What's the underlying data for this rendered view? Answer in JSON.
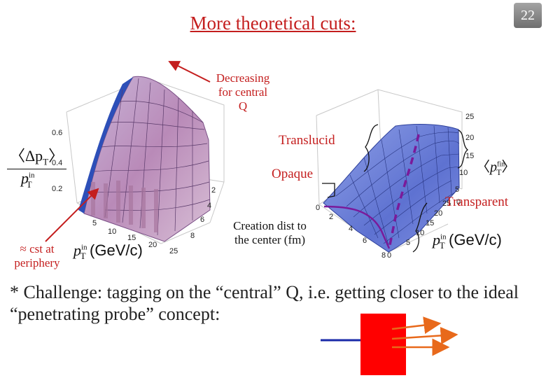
{
  "header": {
    "title": "More theoretical cuts:",
    "page_number": "22"
  },
  "left_plot": {
    "z_ticks": [
      "0.6",
      "0.4",
      "0.2"
    ],
    "x_ticks": [
      "5",
      "10",
      "15",
      "20",
      "25"
    ],
    "y_ticks": [
      "2",
      "4",
      "6",
      "8"
    ],
    "z_axis_label_top": "〈Δp",
    "z_axis_label_sub": "T",
    "z_axis_label_bottom": "p",
    "z_axis_label_bottom_sup": "in",
    "z_axis_label_bottom_sub": "T",
    "x_axis_label_p": "p",
    "x_axis_label_sup": "in",
    "x_axis_label_sub": "T",
    "x_axis_label_units": "(GeV/c)"
  },
  "right_plot": {
    "z_ticks": [
      "25",
      "20",
      "15",
      "10",
      "5",
      "0"
    ],
    "x_ticks": [
      "0",
      "2",
      "4",
      "6",
      "8",
      "0"
    ],
    "y_ticks": [
      "5",
      "10",
      "15",
      "20",
      "25"
    ],
    "side_label_p": "p",
    "side_label_sup": "fin",
    "side_label_sub": "T",
    "x_axis_label_p": "p",
    "x_axis_label_sup": "in",
    "x_axis_label_sub": "T",
    "x_axis_label_units": "(GeV/c)"
  },
  "annotations": {
    "decreasing": [
      "Decreasing",
      "for central",
      "Q"
    ],
    "translucid": "Translucid",
    "opaque": "Opaque",
    "transparent": "Transparent",
    "cst": [
      "≈ cst at",
      "periphery"
    ],
    "creation": [
      "Creation dist to",
      "the center (fm)"
    ]
  },
  "bullet": "* Challenge: tagging on the “central” Q, i.e. getting closer to the ideal “penetrating probe” concept:",
  "colors": {
    "accent_red": "#c41e1e",
    "surface_blue": "#6b7fd6",
    "surface_pink": "#d9b3cf",
    "probe_red": "#ff0000",
    "arrow_orange": "#e8691b",
    "beam_blue": "#1a2aa8",
    "purple_path": "#7a1a9a"
  }
}
